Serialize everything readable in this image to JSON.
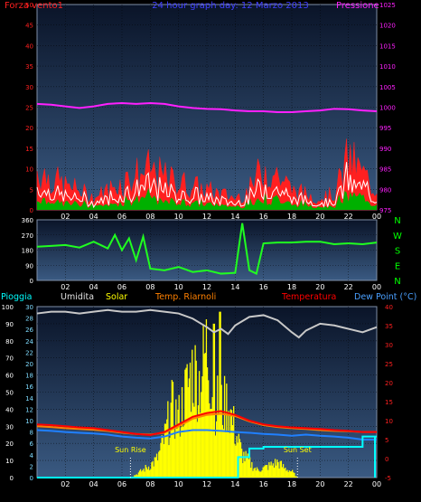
{
  "colors": {
    "wind": "#ff2020",
    "wind_gust": "#ffffff",
    "wind_avg": "#00b000",
    "pressure": "#ff20ff",
    "direction": "#20ff20",
    "rain": "#00ffff",
    "humidity": "#c8c8c8",
    "solar": "#ffff00",
    "temp_indoor": "#ff8000",
    "temperature": "#ff0000",
    "dew_point": "#2080ff",
    "axis_text_blue": "#4040ff"
  },
  "chart_data": [
    {
      "type": "area",
      "title": "24 hour graph day: 12 Marzo 2013",
      "left_label": "Forza vento1",
      "right_label": "Pressione",
      "x_ticks": [
        "02",
        "04",
        "06",
        "08",
        "10",
        "12",
        "14",
        "16",
        "18",
        "20",
        "22",
        "00"
      ],
      "y_left_ticks": [
        "0",
        "5",
        "10",
        "15",
        "20",
        "25",
        "30",
        "35",
        "40",
        "45",
        "50"
      ],
      "y_left_range": [
        0,
        50
      ],
      "y_right_ticks": [
        "975",
        "980",
        "985",
        "990",
        "995",
        "1000",
        "1005",
        "1010",
        "1015",
        "1020",
        "1025"
      ],
      "y_right_range": [
        975,
        1025
      ],
      "grid": true,
      "series": [
        {
          "name": "Pressione",
          "axis": "right",
          "x": [
            0,
            1,
            2,
            3,
            4,
            5,
            6,
            7,
            8,
            9,
            10,
            11,
            12,
            13,
            14,
            15,
            16,
            17,
            18,
            19,
            20,
            21,
            22,
            23,
            24
          ],
          "values": [
            1000.8,
            1000.6,
            1000.2,
            999.8,
            1000.2,
            1000.8,
            1001.0,
            1000.8,
            1001.0,
            1000.8,
            1000.2,
            999.8,
            999.6,
            999.5,
            999.2,
            999.0,
            999.0,
            998.8,
            998.8,
            999.0,
            999.2,
            999.6,
            999.5,
            999.2,
            999.0
          ]
        }
      ],
      "wind_gust_profile_x": [
        0,
        1,
        2,
        3,
        4,
        5,
        6,
        7,
        8,
        9,
        10,
        11,
        12,
        13,
        14,
        15,
        16,
        17,
        18,
        19,
        20,
        21,
        22,
        23,
        24
      ],
      "wind_gust_profile": [
        10,
        8,
        6,
        5,
        3,
        5,
        7,
        9,
        10,
        8,
        7,
        6,
        5,
        4,
        3,
        5,
        11,
        9,
        5,
        4,
        3,
        4,
        13,
        9,
        5
      ]
    },
    {
      "type": "line",
      "x_ticks": [
        "02",
        "04",
        "06",
        "08",
        "10",
        "12",
        "14",
        "16",
        "18",
        "20",
        "22",
        "00"
      ],
      "y_left_ticks": [
        "0",
        "90",
        "180",
        "270",
        "360"
      ],
      "y_left_range": [
        0,
        360
      ],
      "y_right_ticks": [
        "N",
        "W",
        "S",
        "E",
        "N"
      ],
      "grid": true,
      "series": [
        {
          "name": "direction",
          "x": [
            0,
            1,
            2,
            3,
            4,
            5,
            5.5,
            6,
            6.5,
            7,
            7.5,
            8,
            9,
            10,
            11,
            12,
            13,
            14,
            14.5,
            15,
            15.5,
            16,
            17,
            18,
            19,
            20,
            21,
            22,
            23,
            24
          ],
          "values": [
            200,
            205,
            210,
            195,
            230,
            190,
            270,
            180,
            250,
            120,
            260,
            70,
            60,
            80,
            50,
            60,
            40,
            45,
            340,
            60,
            40,
            220,
            225,
            225,
            230,
            230,
            215,
            220,
            215,
            225
          ]
        }
      ]
    },
    {
      "type": "line",
      "legend": [
        "Pioggia",
        "Umidita",
        "Solar",
        "Temp. Riarnoli",
        "Temperatura",
        "Dew Point (°C)"
      ],
      "x_ticks": [
        "02",
        "04",
        "06",
        "08",
        "10",
        "12",
        "14",
        "16",
        "18",
        "20",
        "22",
        "00"
      ],
      "y_rain_ticks": [
        "0",
        "10",
        "20",
        "30",
        "40",
        "50",
        "60",
        "70",
        "80",
        "90",
        "100"
      ],
      "y_rain_range": [
        0,
        100
      ],
      "y_humidity_ticks": [
        "0",
        "2",
        "4",
        "6",
        "8",
        "10",
        "12",
        "14",
        "16",
        "18",
        "20",
        "22",
        "24",
        "26",
        "28",
        "30"
      ],
      "y_temp_ticks": [
        "-5",
        "0",
        "5",
        "10",
        "15",
        "20",
        "25",
        "30",
        "35",
        "40"
      ],
      "y_temp_range": [
        -5,
        40
      ],
      "annotations": [
        {
          "text": "Sun Rise",
          "x": 6.6
        },
        {
          "text": "Sun Set",
          "x": 18.4
        }
      ],
      "grid": true,
      "series": [
        {
          "name": "Umidita",
          "axis": "rain",
          "x": [
            0,
            1,
            2,
            3,
            4,
            5,
            6,
            7,
            8,
            9,
            10,
            11,
            12,
            12.5,
            13,
            13.5,
            14,
            15,
            16,
            17,
            18,
            18.5,
            19,
            20,
            21,
            22,
            23,
            24
          ],
          "values": [
            96,
            97,
            97,
            96,
            97,
            98,
            97,
            97,
            98,
            97,
            96,
            93,
            88,
            85,
            87,
            84,
            89,
            94,
            95,
            92,
            85,
            82,
            86,
            90,
            89,
            87,
            85,
            88
          ]
        },
        {
          "name": "Solar",
          "axis": "rain",
          "x": [
            6.6,
            7,
            7.5,
            8,
            8.5,
            9,
            9.5,
            10,
            10.5,
            11,
            11.5,
            12,
            12.5,
            13,
            13.5,
            14,
            14.5,
            15,
            15.5,
            16,
            16.5,
            17,
            17.5,
            18,
            18.4
          ],
          "values": [
            0,
            2,
            5,
            8,
            12,
            25,
            45,
            38,
            55,
            70,
            62,
            85,
            50,
            45,
            48,
            30,
            15,
            10,
            5,
            6,
            8,
            10,
            6,
            4,
            0
          ]
        },
        {
          "name": "Temp. Riarnoli",
          "axis": "temp",
          "x": [
            0,
            1,
            2,
            3,
            4,
            5,
            6,
            7,
            8,
            9,
            10,
            11,
            12,
            13,
            14,
            15,
            16,
            17,
            18,
            19,
            20,
            21,
            22,
            23,
            24
          ],
          "values": [
            8.5,
            8.3,
            8.0,
            7.8,
            7.6,
            7.3,
            6.8,
            6.5,
            6.3,
            6.8,
            8.5,
            10.5,
            11.5,
            11.8,
            11.2,
            9.8,
            8.8,
            8.3,
            8.0,
            7.8,
            7.5,
            7.3,
            7.2,
            7.0,
            7.0
          ]
        },
        {
          "name": "Temperatura",
          "axis": "temp",
          "x": [
            0,
            1,
            2,
            3,
            4,
            5,
            6,
            7,
            8,
            9,
            10,
            11,
            12,
            13,
            14,
            15,
            16,
            17,
            18,
            19,
            20,
            21,
            22,
            23,
            24
          ],
          "values": [
            9.0,
            8.8,
            8.5,
            8.2,
            8.0,
            7.5,
            7.0,
            6.5,
            6.2,
            7.0,
            9.0,
            11.0,
            12.0,
            12.5,
            11.5,
            10.0,
            9.0,
            8.5,
            8.2,
            8.0,
            7.8,
            7.5,
            7.3,
            7.0,
            7.0
          ]
        },
        {
          "name": "Dew Point (°C)",
          "axis": "temp",
          "x": [
            0,
            1,
            2,
            3,
            4,
            5,
            6,
            7,
            8,
            9,
            10,
            11,
            12,
            13,
            14,
            15,
            16,
            17,
            18,
            19,
            20,
            21,
            22,
            23,
            24
          ],
          "values": [
            7.5,
            7.3,
            7.0,
            6.8,
            6.6,
            6.3,
            5.8,
            5.5,
            5.3,
            5.8,
            7.0,
            7.5,
            7.5,
            7.3,
            7.0,
            6.8,
            6.5,
            6.3,
            6.0,
            6.3,
            6.0,
            5.8,
            5.5,
            5.0,
            5.0
          ]
        },
        {
          "name": "Pioggia",
          "axis": "rain",
          "x": [
            0,
            14,
            14.2,
            15,
            16,
            17,
            18,
            19,
            20,
            21,
            22,
            23,
            24
          ],
          "values": [
            0,
            0,
            12,
            17,
            18,
            18,
            18,
            18,
            18,
            18,
            18,
            24,
            24
          ]
        }
      ]
    }
  ]
}
